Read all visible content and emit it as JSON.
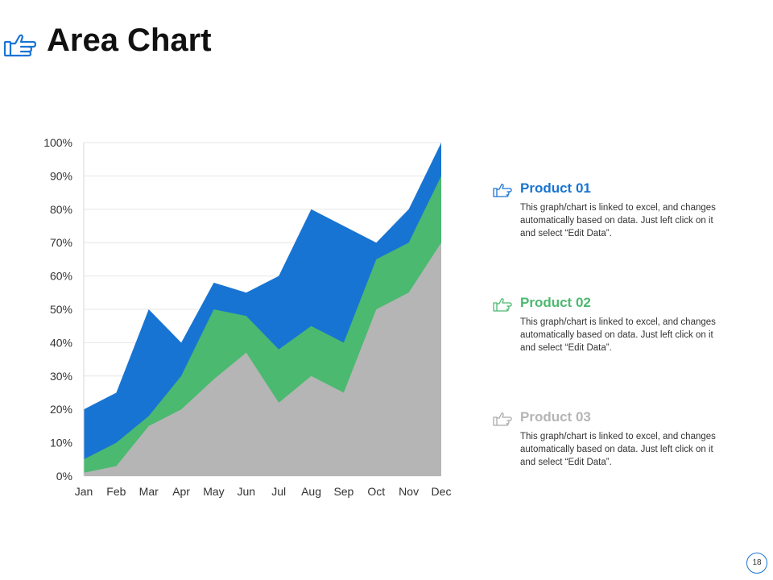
{
  "page": {
    "title": "Area Chart",
    "page_number": "18"
  },
  "colors": {
    "product01": "#1874d2",
    "product02": "#4bb96f",
    "product03": "#b5b5b5",
    "accent": "#1a74d4"
  },
  "legend": [
    {
      "name": "Product 01",
      "desc": "This graph/chart is linked to excel, and changes automatically based on data. Just left click on it and select “Edit Data”.",
      "icon": "pointing-hand-icon"
    },
    {
      "name": "Product 02",
      "desc": "This graph/chart is linked to excel, and changes automatically based on data. Just left click on it and select “Edit Data”.",
      "icon": "pointing-hand-icon"
    },
    {
      "name": "Product 03",
      "desc": "This graph/chart is linked to excel, and changes automatically based on data. Just left click on it and select “Edit Data”.",
      "icon": "pointing-hand-icon"
    }
  ],
  "chart_data": {
    "type": "area",
    "title": "",
    "xlabel": "",
    "ylabel": "",
    "categories": [
      "Jan",
      "Feb",
      "Mar",
      "Apr",
      "May",
      "Jun",
      "Jul",
      "Aug",
      "Sep",
      "Oct",
      "Nov",
      "Dec"
    ],
    "yticks": [
      "0%",
      "10%",
      "20%",
      "30%",
      "40%",
      "50%",
      "60%",
      "70%",
      "80%",
      "90%",
      "100%"
    ],
    "ylim": [
      0,
      100
    ],
    "grid": true,
    "series": [
      {
        "name": "Product 01",
        "values": [
          20,
          25,
          50,
          40,
          58,
          55,
          60,
          80,
          75,
          70,
          80,
          100
        ]
      },
      {
        "name": "Product 02",
        "values": [
          5,
          10,
          18,
          30,
          50,
          48,
          38,
          45,
          40,
          65,
          70,
          90
        ]
      },
      {
        "name": "Product 03",
        "values": [
          1,
          3,
          15,
          20,
          29,
          37,
          22,
          30,
          25,
          50,
          55,
          70
        ]
      }
    ]
  }
}
